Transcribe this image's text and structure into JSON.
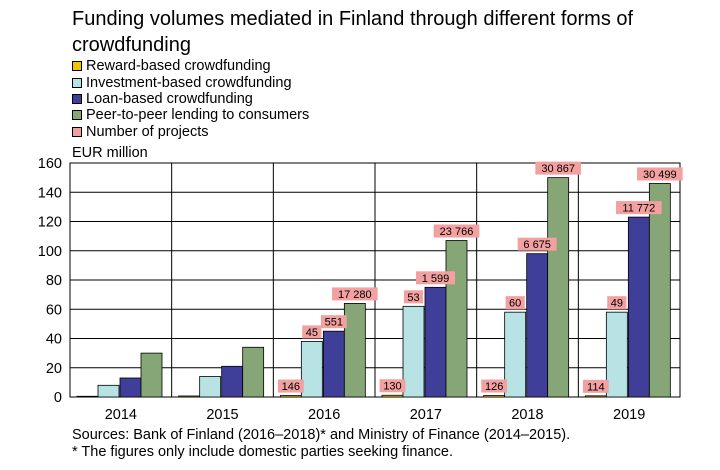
{
  "title": "Funding volumes mediated in Finland through different forms of crowdfunding",
  "legend_items": [
    {
      "label": "Reward-based crowdfunding",
      "color": "#f5c400"
    },
    {
      "label": "Investment-based crowdfunding",
      "color": "#b7e3e4"
    },
    {
      "label": "Loan-based crowdfunding",
      "color": "#3f3f9a"
    },
    {
      "label": "Peer-to-peer lending to consumers",
      "color": "#86a677"
    },
    {
      "label": "Number of projects",
      "color": "#f2a0a0"
    }
  ],
  "footer": {
    "sources": "Sources: Bank of Finland (2016–2018)* and Ministry of Finance (2014–2015).",
    "note": "* The figures only include domestic parties seeking finance."
  },
  "chart_data": {
    "type": "bar",
    "ylabel": "EUR million",
    "ylim": [
      0,
      160
    ],
    "yticks": [
      0,
      20,
      40,
      60,
      80,
      100,
      120,
      140,
      160
    ],
    "categories": [
      "2014",
      "2015",
      "2016",
      "2017",
      "2018",
      "2019"
    ],
    "series": [
      {
        "name": "Reward-based crowdfunding",
        "color": "#f5c400",
        "values": [
          0.5,
          0.7,
          1.0,
          1.2,
          1.0,
          0.8
        ]
      },
      {
        "name": "Investment-based crowdfunding",
        "color": "#b7e3e4",
        "values": [
          8,
          14,
          38,
          62,
          58,
          58
        ]
      },
      {
        "name": "Loan-based crowdfunding",
        "color": "#3f3f9a",
        "values": [
          13,
          21,
          45,
          75,
          98,
          123
        ]
      },
      {
        "name": "Peer-to-peer lending to consumers",
        "color": "#86a677",
        "values": [
          30,
          34,
          64,
          107,
          150,
          146
        ]
      }
    ],
    "project_labels": [
      {
        "year": "2016",
        "series": 0,
        "text": "146"
      },
      {
        "year": "2016",
        "series": 1,
        "text": "45"
      },
      {
        "year": "2016",
        "series": 2,
        "text": "551"
      },
      {
        "year": "2016",
        "series": 3,
        "text": "17 280"
      },
      {
        "year": "2017",
        "series": 0,
        "text": "130"
      },
      {
        "year": "2017",
        "series": 1,
        "text": "53"
      },
      {
        "year": "2017",
        "series": 2,
        "text": "1 599"
      },
      {
        "year": "2017",
        "series": 3,
        "text": "23 766"
      },
      {
        "year": "2018",
        "series": 0,
        "text": "126"
      },
      {
        "year": "2018",
        "series": 1,
        "text": "60"
      },
      {
        "year": "2018",
        "series": 2,
        "text": "6 675"
      },
      {
        "year": "2018",
        "series": 3,
        "text": "30 867"
      },
      {
        "year": "2019",
        "series": 0,
        "text": "114"
      },
      {
        "year": "2019",
        "series": 1,
        "text": "49"
      },
      {
        "year": "2019",
        "series": 2,
        "text": "11 772"
      },
      {
        "year": "2019",
        "series": 3,
        "text": "30 499"
      }
    ],
    "project_label_color": "#f2a0a0",
    "grid": true
  }
}
